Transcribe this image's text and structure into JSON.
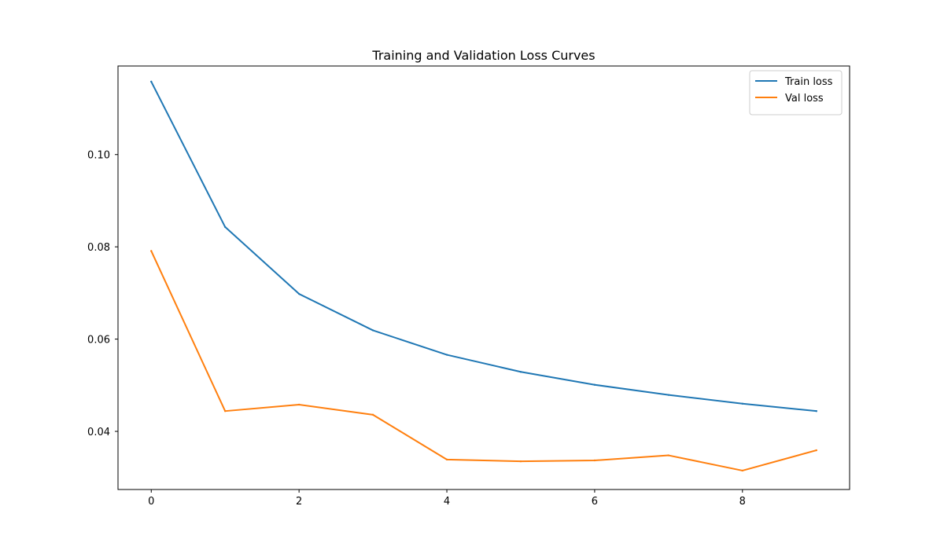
{
  "chart_data": {
    "type": "line",
    "title": "Training and Validation Loss Curves",
    "xlabel": "",
    "ylabel": "",
    "x": [
      0,
      1,
      2,
      3,
      4,
      5,
      6,
      7,
      8,
      9
    ],
    "xlim": [
      -0.45,
      9.45
    ],
    "ylim": [
      0.0274,
      0.1192
    ],
    "xticks": [
      0,
      2,
      4,
      6,
      8
    ],
    "xtick_labels": [
      "0",
      "2",
      "4",
      "6",
      "8"
    ],
    "yticks": [
      0.04,
      0.06,
      0.08,
      0.1
    ],
    "ytick_labels": [
      "0.04",
      "0.06",
      "0.08",
      "0.10"
    ],
    "grid": false,
    "legend_position": "upper right",
    "series": [
      {
        "name": "Train loss",
        "color": "#1f77b4",
        "values": [
          0.1158,
          0.0843,
          0.0698,
          0.0619,
          0.0566,
          0.0529,
          0.0501,
          0.0479,
          0.046,
          0.0444
        ]
      },
      {
        "name": "Val loss",
        "color": "#ff7f0e",
        "values": [
          0.0791,
          0.0444,
          0.0458,
          0.0436,
          0.0339,
          0.0335,
          0.0337,
          0.0348,
          0.0315,
          0.0359
        ]
      }
    ]
  }
}
